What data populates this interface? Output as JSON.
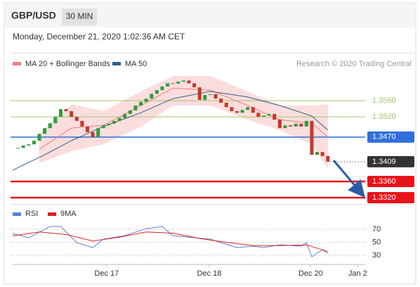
{
  "header": {
    "symbol": "GBP/USD",
    "interval": "30 MIN",
    "timestamp": "Monday, December 21, 2020 1:02:36 AM CET"
  },
  "chart_data": [
    {
      "type": "candlestick",
      "source": "Research © 2020 Trading Central",
      "x": [
        0,
        1,
        2,
        3,
        4,
        5,
        6,
        7,
        8,
        9,
        10,
        11,
        12,
        13,
        14,
        15,
        16,
        17,
        18,
        19,
        20,
        21,
        22,
        23,
        24,
        25,
        26,
        27,
        28,
        29,
        30,
        31,
        32,
        33,
        34,
        35,
        36,
        37,
        38,
        39,
        40,
        41,
        42,
        43,
        44,
        45,
        46,
        47,
        48,
        49,
        50,
        51,
        52,
        53,
        54,
        55,
        56,
        57,
        58,
        59
      ],
      "values": [
        1.3442,
        1.3443,
        1.3449,
        1.3452,
        1.3461,
        1.3478,
        1.3492,
        1.3504,
        1.352,
        1.3539,
        1.3534,
        1.352,
        1.351,
        1.3496,
        1.3482,
        1.347,
        1.3492,
        1.3499,
        1.3503,
        1.351,
        1.3517,
        1.3527,
        1.3536,
        1.3548,
        1.3557,
        1.3565,
        1.3577,
        1.3586,
        1.3595,
        1.3603,
        1.3602,
        1.3607,
        1.361,
        1.3603,
        1.3593,
        1.3562,
        1.3574,
        1.3576,
        1.3565,
        1.3555,
        1.3544,
        1.3534,
        1.353,
        1.3537,
        1.3544,
        1.353,
        1.352,
        1.3523,
        1.3527,
        1.3513,
        1.3492,
        1.3499,
        1.3496,
        1.3503,
        1.3496,
        1.351,
        1.3426,
        1.3433,
        1.3423,
        1.3409
      ],
      "up_color": "#2e9e3a",
      "down_color": "#c0392b",
      "overlays": [
        {
          "name": "MA 20 + Bollinger Bands",
          "color": "#f08080",
          "band_color": "#fbd5d5",
          "x": [
            5,
            11,
            17,
            24,
            30,
            37,
            44,
            50,
            56,
            59
          ],
          "values": [
            1.344,
            1.3492,
            1.3499,
            1.3548,
            1.3591,
            1.3586,
            1.3548,
            1.3513,
            1.3504,
            1.347
          ],
          "upper": [
            1.3478,
            1.3551,
            1.3534,
            1.3583,
            1.3621,
            1.3621,
            1.3583,
            1.3548,
            1.3548,
            1.3551
          ],
          "lower": [
            1.3405,
            1.3435,
            1.3452,
            1.3496,
            1.3548,
            1.3548,
            1.3513,
            1.3487,
            1.3452,
            1.3391
          ]
        },
        {
          "name": "MA 50",
          "color": "#2e5f8a",
          "x": [
            0,
            6,
            11,
            17,
            24,
            30,
            37,
            44,
            50,
            56,
            59
          ],
          "values": [
            1.3388,
            1.3426,
            1.3461,
            1.3496,
            1.353,
            1.3565,
            1.3583,
            1.3569,
            1.3548,
            1.3522,
            1.3487
          ]
        }
      ],
      "levels": [
        {
          "value": 1.356,
          "label": "1.3560",
          "color": "#9dc96b",
          "boxed": false,
          "dotted": false
        },
        {
          "value": 1.352,
          "label": "1.3520",
          "color": "#9dc96b",
          "boxed": false,
          "dotted": false
        },
        {
          "value": 1.347,
          "label": "1.3470",
          "color": "#2f6fdc",
          "boxed": true,
          "dotted": false
        },
        {
          "value": 1.3409,
          "label": "1.3409",
          "color": "#333333",
          "boxed": true,
          "dotted": true
        },
        {
          "value": 1.336,
          "label": "1.3360",
          "color": "#e8141a",
          "boxed": true,
          "dotted": false
        },
        {
          "value": 1.332,
          "label": "1.3320",
          "color": "#e8141a",
          "boxed": true,
          "dotted": false
        }
      ],
      "xlim": [
        0,
        66
      ],
      "ylim": [
        1.33,
        1.3635
      ]
    },
    {
      "type": "line",
      "series": [
        {
          "name": "RSI",
          "color": "#5b7fd6",
          "x": [
            0,
            3,
            7,
            9,
            12,
            15,
            17,
            21,
            25,
            28,
            30,
            34,
            37,
            39,
            42,
            45,
            47,
            50,
            54,
            55,
            56,
            58,
            59
          ],
          "values": [
            63.5,
            57,
            74.3,
            74.3,
            49.5,
            41.9,
            54.9,
            60.3,
            71,
            74.3,
            60.3,
            57,
            54.9,
            49.5,
            41.9,
            44,
            41.9,
            46.2,
            44,
            49.5,
            27.8,
            38.6,
            33.2
          ]
        },
        {
          "name": "9MA",
          "color": "#e02020",
          "x": [
            0,
            5,
            10,
            15,
            20,
            25,
            30,
            35,
            40,
            45,
            50,
            55,
            59
          ],
          "values": [
            60,
            66,
            62,
            52,
            58,
            66,
            64,
            56,
            50,
            45,
            45,
            46,
            36
          ]
        }
      ],
      "xlim": [
        0,
        66
      ],
      "ylim": [
        20,
        80
      ],
      "yticks": [
        30,
        50,
        70
      ],
      "xticks": [
        {
          "value": 17.6,
          "label": "Dec 17"
        },
        {
          "value": 36.8,
          "label": "Dec 18"
        },
        {
          "value": 55.8,
          "label": "Dec 20"
        },
        {
          "value": 64.6,
          "label": "Jan 2"
        }
      ]
    }
  ]
}
